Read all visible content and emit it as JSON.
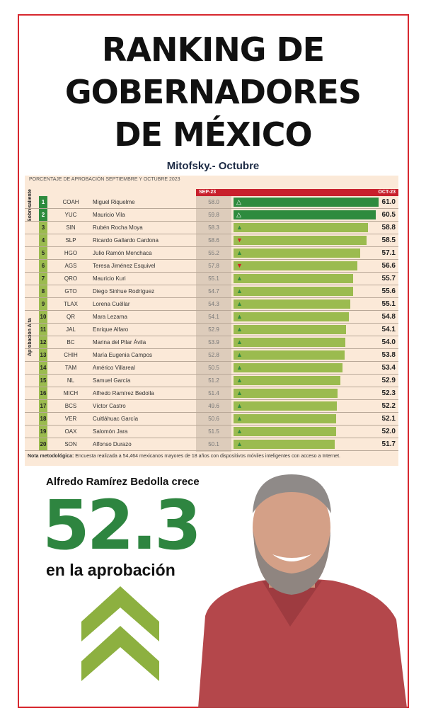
{
  "title": [
    "RANKING DE",
    "GOBERNADORES",
    "DE MÉXICO"
  ],
  "subtitle": "Mitofsky.- Octubre",
  "table": {
    "caption": "Porcentaje de aprobación septiembre y octubre 2023",
    "col_sep": "SEP-23",
    "col_oct": "OCT-23",
    "group_top": "Sobresaliente",
    "group_rest": "Aprobación Alta",
    "rows": [
      {
        "rank": "1",
        "state": "COAH",
        "name": "Miguel Riquelme",
        "sep": "58.0",
        "oct": "61.0",
        "trend": "up-outline"
      },
      {
        "rank": "2",
        "state": "YUC",
        "name": "Mauricio Vila",
        "sep": "59.8",
        "oct": "60.5",
        "trend": "up-outline"
      },
      {
        "rank": "3",
        "state": "SIN",
        "name": "Rubén Rocha Moya",
        "sep": "58.3",
        "oct": "58.8",
        "trend": "up"
      },
      {
        "rank": "4",
        "state": "SLP",
        "name": "Ricardo Gallardo Cardona",
        "sep": "58.6",
        "oct": "58.5",
        "trend": "down"
      },
      {
        "rank": "5",
        "state": "HGO",
        "name": "Julio Ramón Menchaca",
        "sep": "55.2",
        "oct": "57.1",
        "trend": "up"
      },
      {
        "rank": "6",
        "state": "AGS",
        "name": "Teresa Jiménez Esquivel",
        "sep": "57.8",
        "oct": "56.6",
        "trend": "down"
      },
      {
        "rank": "7",
        "state": "QRO",
        "name": "Mauricio Kuri",
        "sep": "55.1",
        "oct": "55.7",
        "trend": "up"
      },
      {
        "rank": "8",
        "state": "GTO",
        "name": "Diego Sinhue Rodríguez",
        "sep": "54.7",
        "oct": "55.6",
        "trend": "up"
      },
      {
        "rank": "9",
        "state": "TLAX",
        "name": "Lorena Cuéllar",
        "sep": "54.3",
        "oct": "55.1",
        "trend": "up"
      },
      {
        "rank": "10",
        "state": "QR",
        "name": "Mara Lezama",
        "sep": "54.1",
        "oct": "54.8",
        "trend": "up"
      },
      {
        "rank": "11",
        "state": "JAL",
        "name": "Enrique Alfaro",
        "sep": "52.9",
        "oct": "54.1",
        "trend": "up"
      },
      {
        "rank": "12",
        "state": "BC",
        "name": "Marina del Pilar Ávila",
        "sep": "53.9",
        "oct": "54.0",
        "trend": "up"
      },
      {
        "rank": "13",
        "state": "CHIH",
        "name": "María Eugenia Campos",
        "sep": "52.8",
        "oct": "53.8",
        "trend": "up"
      },
      {
        "rank": "14",
        "state": "TAM",
        "name": "Américo Villareal",
        "sep": "50.5",
        "oct": "53.4",
        "trend": "up"
      },
      {
        "rank": "15",
        "state": "NL",
        "name": "Samuel García",
        "sep": "51.2",
        "oct": "52.9",
        "trend": "up"
      },
      {
        "rank": "16",
        "state": "MICH",
        "name": "Alfredo Ramírez Bedolla",
        "sep": "51.4",
        "oct": "52.3",
        "trend": "up"
      },
      {
        "rank": "17",
        "state": "BCS",
        "name": "Víctor Castro",
        "sep": "49.6",
        "oct": "52.2",
        "trend": "up"
      },
      {
        "rank": "18",
        "state": "VER",
        "name": "Cuitláhuac García",
        "sep": "50.6",
        "oct": "52.1",
        "trend": "up"
      },
      {
        "rank": "19",
        "state": "OAX",
        "name": "Salomón Jara",
        "sep": "51.5",
        "oct": "52.0",
        "trend": "up"
      },
      {
        "rank": "20",
        "state": "SON",
        "name": "Alfonso Durazo",
        "sep": "50.1",
        "oct": "51.7",
        "trend": "up"
      }
    ],
    "note_label": "Nota metodológica:",
    "note_text": " Encuesta realizada a 54,464 mexicanos mayores de 18 años con dispositivos móviles inteligentes con acceso a Internet."
  },
  "highlight": {
    "headline": "Alfredo Ramírez Bedolla crece",
    "value": "52.3",
    "caption": "en la aprobación"
  },
  "colors": {
    "frame": "#d7282f",
    "dark_green": "#2e8b3e",
    "light_green": "#9bbb4f",
    "header_red": "#c8202c",
    "big_number": "#2e8540"
  }
}
